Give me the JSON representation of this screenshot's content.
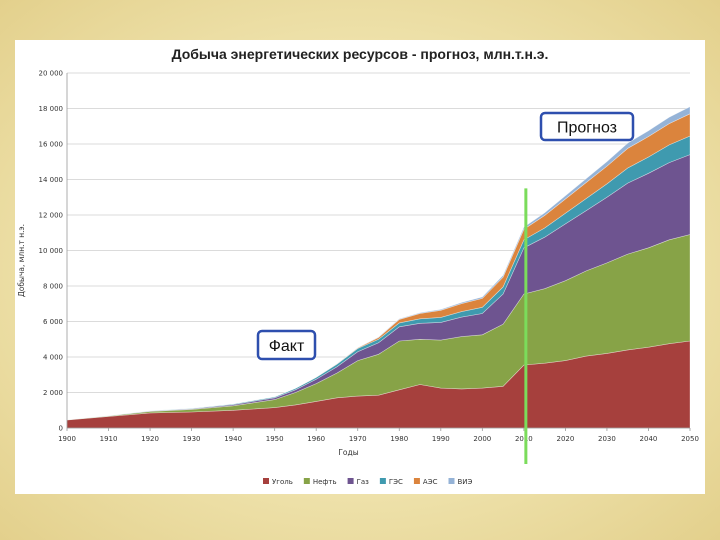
{
  "chart_data": {
    "type": "area",
    "stacked": true,
    "title": "Добыча энергетических  ресурсов  - прогноз,  млн.т.н.э.",
    "xlabel": "Годы",
    "ylabel": "Добыча, млн.т н.э.",
    "xlim": [
      1900,
      2050
    ],
    "ylim": [
      0,
      20000
    ],
    "x_ticks": [
      "1900",
      "1910",
      "1920",
      "1930",
      "1940",
      "1950",
      "1960",
      "1970",
      "1980",
      "1990",
      "2000",
      "2010",
      "2020",
      "2030",
      "2040",
      "2050"
    ],
    "y_ticks": [
      "0",
      "2 000",
      "4 000",
      "6 000",
      "8 000",
      "10 000",
      "12 000",
      "14 000",
      "16 000",
      "18 000",
      "20 000"
    ],
    "grid": true,
    "legend_position": "bottom",
    "x": [
      1900,
      1910,
      1920,
      1930,
      1940,
      1950,
      1955,
      1960,
      1965,
      1970,
      1975,
      1980,
      1985,
      1990,
      1995,
      2000,
      2005,
      2010,
      2015,
      2020,
      2025,
      2030,
      2035,
      2040,
      2045,
      2050
    ],
    "series": [
      {
        "name": "Уголь",
        "color": "#a6403d",
        "values": [
          450,
          650,
          850,
          900,
          1000,
          1150,
          1300,
          1500,
          1700,
          1800,
          1850,
          2150,
          2450,
          2250,
          2200,
          2250,
          2350,
          3550,
          3650,
          3800,
          4050,
          4200,
          4400,
          4550,
          4750,
          4900
        ]
      },
      {
        "name": "Нефть",
        "color": "#87a347",
        "values": [
          10,
          30,
          80,
          150,
          250,
          450,
          700,
          1000,
          1400,
          2000,
          2300,
          2750,
          2550,
          2700,
          2950,
          3000,
          3500,
          4000,
          4200,
          4500,
          4800,
          5100,
          5400,
          5600,
          5850,
          6000
        ]
      },
      {
        "name": "Газ",
        "color": "#6e5490",
        "values": [
          5,
          10,
          20,
          30,
          60,
          100,
          150,
          250,
          350,
          500,
          650,
          800,
          900,
          1000,
          1100,
          1200,
          1700,
          2600,
          2900,
          3200,
          3400,
          3700,
          4000,
          4200,
          4350,
          4500
        ]
      },
      {
        "name": "ГЭС",
        "color": "#3f9aaf",
        "values": [
          5,
          10,
          20,
          30,
          40,
          60,
          80,
          100,
          150,
          180,
          200,
          220,
          250,
          280,
          310,
          350,
          400,
          450,
          520,
          600,
          680,
          750,
          850,
          920,
          1000,
          1050
        ]
      },
      {
        "name": "АЭС",
        "color": "#db843d",
        "values": [
          0,
          0,
          0,
          0,
          0,
          0,
          0,
          5,
          10,
          30,
          100,
          200,
          300,
          400,
          450,
          500,
          550,
          600,
          700,
          800,
          900,
          1000,
          1100,
          1150,
          1200,
          1250
        ]
      },
      {
        "name": "ВИЭ",
        "color": "#95b3d7",
        "values": [
          0,
          0,
          0,
          0,
          0,
          0,
          0,
          0,
          5,
          10,
          20,
          30,
          40,
          50,
          60,
          80,
          100,
          120,
          150,
          180,
          220,
          260,
          300,
          330,
          360,
          400
        ]
      }
    ],
    "annotations": [
      {
        "text": "Факт",
        "near_year": 1950
      },
      {
        "text": "Прогноз",
        "near_year": 2020
      }
    ],
    "boundary_year": 2010,
    "boundary_color": "#7bdc5b"
  }
}
